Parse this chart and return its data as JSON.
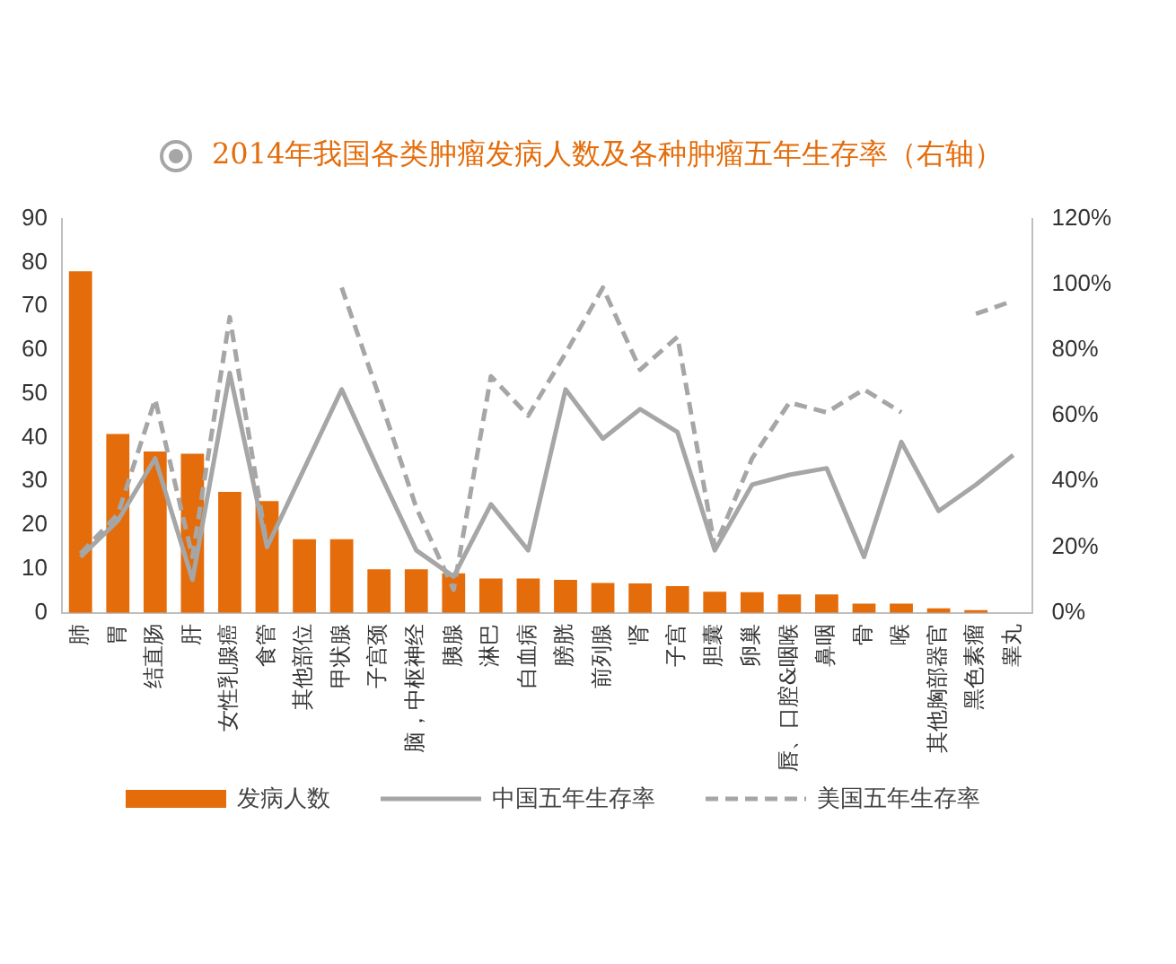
{
  "chart_data": {
    "type": "bar",
    "title": "2014年我国各类肿瘤发病人数及各种肿瘤五年生存率（右轴）",
    "categories": [
      "肺",
      "胃",
      "结直肠",
      "肝",
      "女性乳腺癌",
      "食管",
      "其他部位",
      "甲状腺",
      "子宫颈",
      "脑，中枢神经",
      "胰腺",
      "淋巴",
      "白血病",
      "膀胱",
      "前列腺",
      "肾",
      "子宫",
      "胆囊",
      "卵巢",
      "唇、口腔&咽喉",
      "鼻咽",
      "骨",
      "喉",
      "其他胸部器官",
      "黑色素瘤",
      "睾丸"
    ],
    "series": [
      {
        "name": "发病人数",
        "color": "#e46c0a",
        "values": [
          78,
          40.8,
          36.8,
          36.3,
          27.6,
          25.5,
          16.8,
          16.8,
          9.9,
          9.9,
          9,
          7.8,
          7.8,
          7.5,
          6.8,
          6.7,
          6.1,
          4.8,
          4.7,
          4.2,
          4.2,
          2.1,
          2.1,
          1,
          0.6,
          null
        ]
      },
      {
        "name": "中国五年生存率",
        "type": "line",
        "axis": "y2",
        "color": "#a6a6a6",
        "line_style": "solid",
        "values": [
          17,
          28,
          47,
          10,
          73,
          20,
          44,
          68,
          43,
          19,
          11,
          33,
          19,
          68,
          53,
          62,
          55,
          19,
          39,
          42,
          44,
          17,
          52,
          31,
          39,
          48
        ]
      },
      {
        "name": "美国五年生存率",
        "type": "line",
        "axis": "y2",
        "color": "#a6a6a6",
        "line_style": "dashed",
        "values": [
          18,
          30,
          65,
          17,
          90,
          20,
          null,
          99,
          66,
          32,
          7,
          72,
          60,
          79,
          99,
          74,
          84,
          20,
          47,
          64,
          61,
          68,
          61,
          null,
          91,
          95
        ]
      }
    ],
    "ylim": [
      0,
      90
    ],
    "yticks": [
      0,
      10,
      20,
      30,
      40,
      50,
      60,
      70,
      80,
      90
    ],
    "y2lim": [
      0,
      120
    ],
    "y2ticks": [
      {
        "value": 0,
        "label": "0%"
      },
      {
        "value": 20,
        "label": "20%"
      },
      {
        "value": 40,
        "label": "40%"
      },
      {
        "value": 60,
        "label": "60%"
      },
      {
        "value": 80,
        "label": "80%"
      },
      {
        "value": 100,
        "label": "100%"
      },
      {
        "value": 120,
        "label": "120%"
      }
    ],
    "grid": false,
    "legend": "bottom",
    "marker": "none"
  }
}
